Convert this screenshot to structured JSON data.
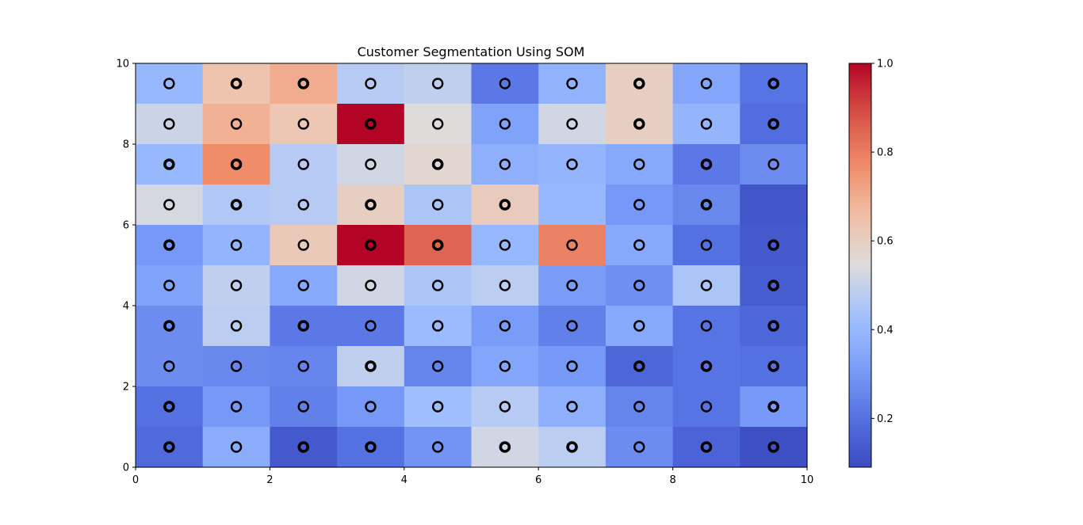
{
  "chart_data": {
    "type": "heatmap",
    "title": "Customer Segmentation Using SOM",
    "xlabel": "",
    "ylabel": "",
    "xlim": [
      0,
      10
    ],
    "ylim": [
      0,
      10
    ],
    "x_ticks": [
      "0",
      "2",
      "4",
      "6",
      "8",
      "10"
    ],
    "y_ticks": [
      "0",
      "2",
      "4",
      "6",
      "8",
      "10"
    ],
    "grid": false,
    "colormap": "coolwarm",
    "colorbar": {
      "range": [
        0.09,
        1.0
      ],
      "ticks": [
        "0.2",
        "0.4",
        "0.6",
        "0.8",
        "1.0"
      ],
      "tick_values": [
        0.2,
        0.4,
        0.6,
        0.8,
        1.0
      ]
    },
    "grid_values_rows_top_to_bottom": [
      [
        0.4,
        0.64,
        0.7,
        0.47,
        0.49,
        0.22,
        0.38,
        0.6,
        0.34,
        0.21
      ],
      [
        0.51,
        0.69,
        0.63,
        1.0,
        0.55,
        0.33,
        0.52,
        0.6,
        0.39,
        0.19
      ],
      [
        0.4,
        0.77,
        0.47,
        0.52,
        0.57,
        0.37,
        0.39,
        0.35,
        0.22,
        0.27
      ],
      [
        0.53,
        0.46,
        0.47,
        0.6,
        0.45,
        0.61,
        0.4,
        0.3,
        0.26,
        0.12
      ],
      [
        0.3,
        0.39,
        0.62,
        1.0,
        0.85,
        0.4,
        0.79,
        0.35,
        0.2,
        0.13
      ],
      [
        0.33,
        0.49,
        0.35,
        0.52,
        0.45,
        0.48,
        0.31,
        0.28,
        0.45,
        0.14
      ],
      [
        0.27,
        0.48,
        0.22,
        0.22,
        0.41,
        0.31,
        0.24,
        0.35,
        0.21,
        0.17
      ],
      [
        0.27,
        0.26,
        0.25,
        0.49,
        0.25,
        0.34,
        0.3,
        0.17,
        0.21,
        0.2
      ],
      [
        0.2,
        0.3,
        0.24,
        0.3,
        0.42,
        0.47,
        0.37,
        0.25,
        0.21,
        0.3
      ],
      [
        0.18,
        0.36,
        0.13,
        0.2,
        0.29,
        0.52,
        0.48,
        0.27,
        0.16,
        0.1
      ]
    ],
    "markers": {
      "shape": "circle",
      "color": "#000000",
      "fill": "none",
      "empty_cells": [
        [
          6,
          6
        ],
        [
          9,
          6
        ]
      ],
      "thick_cells": [
        [
          0,
          0
        ],
        [
          2,
          0
        ],
        [
          3,
          0
        ],
        [
          5,
          0
        ],
        [
          6,
          0
        ],
        [
          8,
          0
        ],
        [
          9,
          0
        ],
        [
          0,
          1
        ],
        [
          9,
          1
        ],
        [
          3,
          2
        ],
        [
          7,
          2
        ],
        [
          8,
          2
        ],
        [
          9,
          2
        ],
        [
          0,
          3
        ],
        [
          2,
          3
        ],
        [
          9,
          3
        ],
        [
          9,
          4
        ],
        [
          0,
          5
        ],
        [
          3,
          5
        ],
        [
          4,
          5
        ],
        [
          9,
          5
        ],
        [
          1,
          6
        ],
        [
          3,
          6
        ],
        [
          5,
          6
        ],
        [
          8,
          6
        ],
        [
          0,
          7
        ],
        [
          1,
          7
        ],
        [
          4,
          7
        ],
        [
          8,
          7
        ],
        [
          3,
          8
        ],
        [
          7,
          8
        ],
        [
          9,
          8
        ],
        [
          1,
          9
        ],
        [
          2,
          9
        ],
        [
          7,
          9
        ],
        [
          9,
          9
        ]
      ]
    }
  }
}
